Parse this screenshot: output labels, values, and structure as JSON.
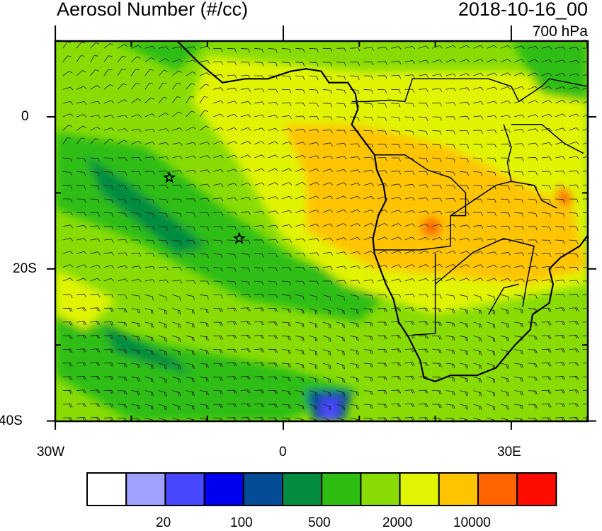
{
  "title_left": "Aerosol Number (#/cc)",
  "title_right": "2018-10-16_00",
  "level": "700 hPa",
  "map": {
    "projection": "cylindrical equidistant",
    "lon_range": [
      -30,
      40
    ],
    "lat_range": [
      -40,
      10
    ],
    "x_tick_labels": [
      "30W",
      "0",
      "30E"
    ],
    "y_tick_labels": [
      "0",
      "20S",
      "40S"
    ],
    "markers": [
      {
        "type": "star",
        "lon": -15,
        "lat": -8
      },
      {
        "type": "star",
        "lon": -5.8,
        "lat": -16
      }
    ],
    "overlays": [
      "coastlines",
      "country-borders",
      "wind-barbs"
    ]
  },
  "colorbar": {
    "colors": [
      "#ffffff",
      "#a0a0ff",
      "#4848ff",
      "#0000f0",
      "#044c96",
      "#048c40",
      "#2ebe12",
      "#88dc04",
      "#e0f404",
      "#ffc400",
      "#ff6400",
      "#ff0c00"
    ],
    "labels": [
      "20",
      "100",
      "500",
      "2000",
      "10000"
    ]
  }
}
